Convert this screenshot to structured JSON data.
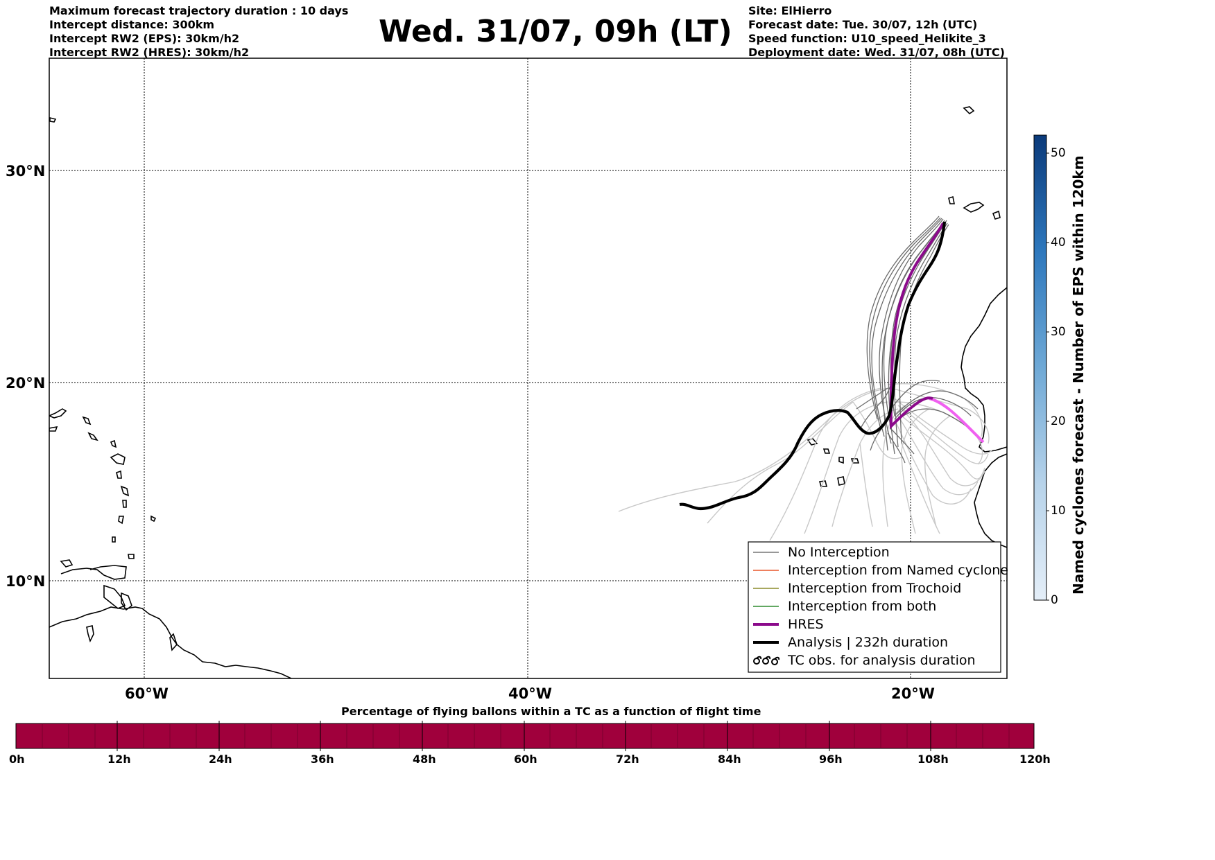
{
  "header": {
    "left_lines": [
      "Maximum forecast trajectory duration : 10 days",
      "Intercept distance: 300km",
      "Intercept RW2 (EPS):  30km/h2",
      "Intercept RW2 (HRES): 30km/h2"
    ],
    "title": "Wed. 31/07, 09h (LT)",
    "right_lines": [
      "Site: ElHierro",
      "Forecast date: Tue. 30/07, 12h (UTC)",
      "Speed function: U10_speed_Helikite_3",
      "Deployment date: Wed. 31/07, 08h (UTC)"
    ]
  },
  "map": {
    "lat_labels": [
      "30°N",
      "20°N",
      "10°N"
    ],
    "lon_labels": [
      "60°W",
      "40°W",
      "20°W"
    ],
    "legend": [
      {
        "label": "No Interception",
        "color": "#777777",
        "icon": "line"
      },
      {
        "label": "Interception from Named cyclone",
        "color": "#e8572a",
        "icon": "line"
      },
      {
        "label": "Interception from Trochoid",
        "color": "#8b8b2a",
        "icon": "line"
      },
      {
        "label": "Interception from both",
        "color": "#2e8b2e",
        "icon": "line"
      },
      {
        "label": "HRES",
        "color": "#8b0a8b",
        "icon": "thick-line"
      },
      {
        "label": "Analysis | 232h duration",
        "color": "#000000",
        "icon": "thick-line"
      },
      {
        "label": "TC obs. for analysis duration",
        "color": "#000000",
        "icon": "cyclone-symbol"
      }
    ],
    "colors": {
      "land_outline": "#000000",
      "eps_track": "#6b6b6b",
      "eps_track_light": "#c8c8c8",
      "hres_track": "#8b0a8b",
      "hres_track_light": "#f060f0",
      "analysis_track": "#000000"
    }
  },
  "colorbar": {
    "title": "Named cyclones forecast - Number of EPS within 120km",
    "ticks": [
      "0",
      "10",
      "20",
      "30",
      "40",
      "50"
    ],
    "color_low": "#e4eef8",
    "color_high": "#0b3a7a"
  },
  "timeline": {
    "title": "Percentage of flying ballons within a TC as a function of flight time",
    "ticks": [
      "0h",
      "12h",
      "24h",
      "36h",
      "48h",
      "60h",
      "72h",
      "84h",
      "96h",
      "108h",
      "120h"
    ],
    "bar_color": "#a0003c"
  }
}
